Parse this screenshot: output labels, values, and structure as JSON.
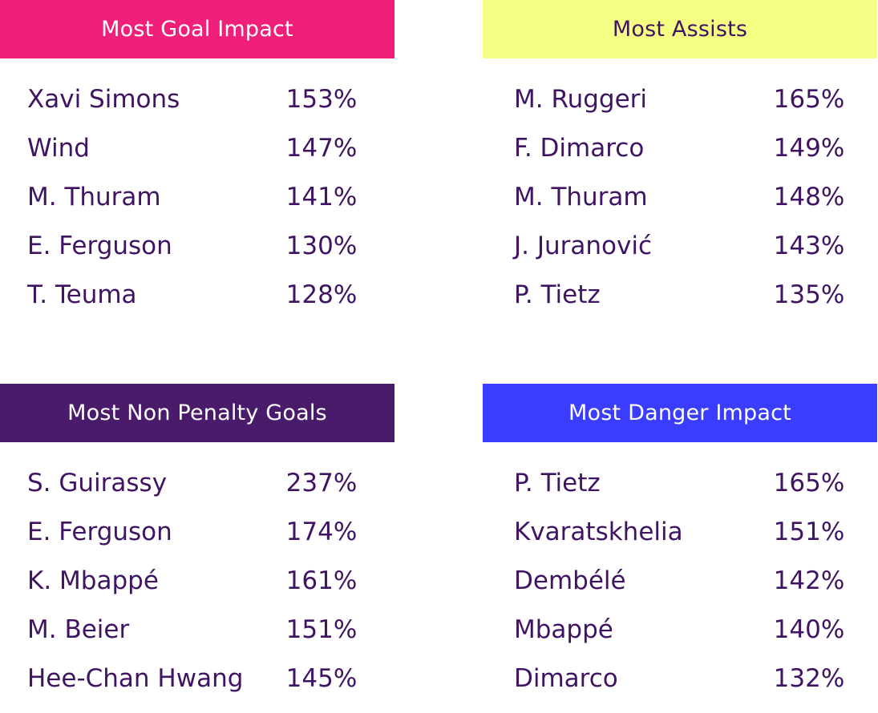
{
  "panels": [
    {
      "title": "Most Goal Impact",
      "header_bg": "#ef1f7a",
      "header_fg": "#ffffff",
      "rows": [
        {
          "name": "Xavi Simons",
          "value": "153%"
        },
        {
          "name": "Wind",
          "value": "147%"
        },
        {
          "name": "M. Thuram",
          "value": "141%"
        },
        {
          "name": "E. Ferguson",
          "value": "130%"
        },
        {
          "name": "T. Teuma",
          "value": "128%"
        }
      ]
    },
    {
      "title": "Most Assists",
      "header_bg": "#f3fe82",
      "header_fg": "#3f1463",
      "rows": [
        {
          "name": "M. Ruggeri",
          "value": "165%"
        },
        {
          "name": "F. Dimarco",
          "value": "149%"
        },
        {
          "name": "M. Thuram",
          "value": "148%"
        },
        {
          "name": "J. Juranović",
          "value": "143%"
        },
        {
          "name": "P. Tietz",
          "value": "135%"
        }
      ]
    },
    {
      "title": "Most Non Penalty Goals",
      "header_bg": "#4a1b6b",
      "header_fg": "#ffffff",
      "rows": [
        {
          "name": "S. Guirassy",
          "value": "237%"
        },
        {
          "name": "E. Ferguson",
          "value": "174%"
        },
        {
          "name": "K. Mbappé",
          "value": "161%"
        },
        {
          "name": "M. Beier",
          "value": "151%"
        },
        {
          "name": "Hee-Chan Hwang",
          "value": "145%"
        }
      ]
    },
    {
      "title": "Most Danger Impact",
      "header_bg": "#3b3dfd",
      "header_fg": "#ffffff",
      "rows": [
        {
          "name": "P. Tietz",
          "value": "165%"
        },
        {
          "name": "Kvaratskhelia",
          "value": "151%"
        },
        {
          "name": "Dembélé",
          "value": "142%"
        },
        {
          "name": "Mbappé",
          "value": "140%"
        },
        {
          "name": "Dimarco",
          "value": "132%"
        }
      ]
    }
  ]
}
